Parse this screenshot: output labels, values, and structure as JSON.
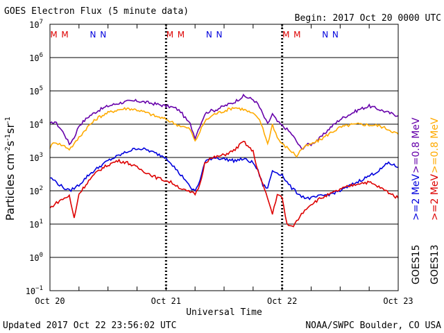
{
  "title": "GOES Electron Flux (5 minute data)",
  "begin": "Begin: 2017 Oct 20 0000 UTC",
  "updated": "Updated 2017 Oct 22 23:56:02 UTC",
  "credit": "NOAA/SWPC Boulder, CO USA",
  "colors": {
    "goes15_lo": "#6600aa",
    "goes13_lo": "#ffaa00",
    "goes15_hi": "#0000dd",
    "goes13_hi": "#dd0000",
    "M": "#dd0000",
    "N": "#0000dd"
  },
  "chart_data": {
    "type": "line",
    "title": "GOES Electron Flux (5 minute data)",
    "xlabel": "Universal Time",
    "ylabel_base": "Particles cm",
    "ylabel_sup1": "-2",
    "ylabel_s": "s",
    "ylabel_sup2": "-1",
    "ylabel_sr": "sr",
    "ylabel_sup3": "-1",
    "y_scale": "log",
    "ylim": [
      0.1,
      10000000
    ],
    "xlim_hours": [
      0,
      72
    ],
    "x_ticks": [
      {
        "h": 0,
        "label": "Oct 20"
      },
      {
        "h": 24,
        "label": "Oct 21"
      },
      {
        "h": 48,
        "label": "Oct 22"
      },
      {
        "h": 72,
        "label": "Oct 23"
      }
    ],
    "y_ticks": [
      {
        "exp": -1,
        "base": "10",
        "sup": "−1"
      },
      {
        "exp": 0,
        "base": "10",
        "sup": "0"
      },
      {
        "exp": 1,
        "base": "10",
        "sup": "1"
      },
      {
        "exp": 2,
        "base": "10",
        "sup": "2"
      },
      {
        "exp": 3,
        "base": "10",
        "sup": "3"
      },
      {
        "exp": 4,
        "base": "10",
        "sup": "4"
      },
      {
        "exp": 5,
        "base": "10",
        "sup": "5"
      },
      {
        "exp": 6,
        "base": "10",
        "sup": "6"
      },
      {
        "exp": 7,
        "base": "10",
        "sup": "7"
      }
    ],
    "threshold": 1000,
    "midnight_markers": [
      {
        "h": 0.8,
        "type": "M"
      },
      {
        "h": 3.1,
        "type": "M"
      },
      {
        "h": 8.9,
        "type": "N"
      },
      {
        "h": 11.0,
        "type": "N"
      },
      {
        "h": 24.8,
        "type": "M"
      },
      {
        "h": 27.1,
        "type": "M"
      },
      {
        "h": 32.9,
        "type": "N"
      },
      {
        "h": 35.0,
        "type": "N"
      },
      {
        "h": 48.8,
        "type": "M"
      },
      {
        "h": 51.1,
        "type": "M"
      },
      {
        "h": 56.9,
        "type": "N"
      },
      {
        "h": 59.0,
        "type": "N"
      }
    ],
    "legend": {
      "goes15_lo": ">=0.8 MeV",
      "goes13_lo": ">=0.8 MeV",
      "goes15_hi": ">=2 MeV",
      "goes13_hi": ">=2 MeV",
      "goes15": "GOES15",
      "goes13": "GOES13"
    },
    "series": [
      {
        "key": "goes15_lo",
        "color": "#6600aa",
        "x": [
          0,
          1,
          2,
          3,
          4,
          5,
          6,
          8,
          10,
          12,
          14,
          16,
          18,
          20,
          22,
          24,
          25,
          26,
          27,
          28,
          29,
          30,
          31,
          32,
          33,
          34,
          36,
          38,
          40,
          42,
          43,
          44,
          45,
          46,
          47,
          48,
          49,
          50,
          51,
          52,
          53,
          54,
          56,
          58,
          60,
          62,
          64,
          66,
          68,
          70,
          72
        ],
        "y": [
          10000,
          12000,
          8000,
          5000,
          2500,
          4000,
          9000,
          17000,
          26000,
          35000,
          42000,
          48000,
          50000,
          45000,
          40000,
          35000,
          33000,
          30000,
          24000,
          15000,
          10000,
          4000,
          9000,
          20000,
          25000,
          26000,
          35000,
          45000,
          70000,
          55000,
          40000,
          20000,
          10000,
          20000,
          12000,
          9000,
          7000,
          5000,
          3000,
          1800,
          2400,
          2500,
          4000,
          8000,
          14000,
          20000,
          28000,
          35000,
          28000,
          22000,
          18000
        ]
      },
      {
        "key": "goes13_lo",
        "color": "#ffaa00",
        "x": [
          0,
          1,
          2,
          3,
          4,
          5,
          6,
          8,
          10,
          12,
          14,
          16,
          18,
          20,
          22,
          24,
          25,
          26,
          27,
          28,
          29,
          30,
          31,
          32,
          33,
          34,
          36,
          38,
          40,
          42,
          43,
          44,
          45,
          46,
          47,
          48,
          49,
          50,
          51,
          52,
          53,
          54,
          56,
          58,
          60,
          62,
          64,
          66,
          68,
          70,
          72
        ],
        "y": [
          2000,
          3000,
          2500,
          2200,
          1800,
          2500,
          4000,
          9000,
          16000,
          22000,
          27000,
          30000,
          27000,
          22000,
          17000,
          14000,
          12000,
          10000,
          9000,
          8000,
          7000,
          3000,
          6000,
          12000,
          16000,
          20000,
          25000,
          32000,
          28000,
          20000,
          16000,
          8000,
          2500,
          10000,
          4000,
          2500,
          2000,
          1500,
          1100,
          1800,
          2200,
          2500,
          3500,
          5500,
          8000,
          9500,
          10000,
          9500,
          9000,
          7000,
          5000
        ]
      },
      {
        "key": "goes15_hi",
        "color": "#0000dd",
        "x": [
          0,
          1,
          2,
          3,
          4,
          5,
          6,
          8,
          10,
          12,
          14,
          16,
          18,
          20,
          22,
          24,
          25,
          26,
          27,
          28,
          29,
          30,
          31,
          32,
          33,
          34,
          36,
          38,
          40,
          42,
          43,
          44,
          45,
          46,
          47,
          48,
          49,
          50,
          51,
          52,
          53,
          54,
          56,
          58,
          60,
          62,
          64,
          66,
          68,
          70,
          72
        ],
        "y": [
          250,
          200,
          150,
          120,
          100,
          120,
          150,
          300,
          500,
          800,
          1100,
          1500,
          1900,
          1700,
          1300,
          1000,
          700,
          450,
          300,
          220,
          120,
          100,
          200,
          700,
          900,
          1000,
          900,
          800,
          900,
          700,
          400,
          150,
          120,
          400,
          350,
          300,
          180,
          120,
          90,
          70,
          60,
          60,
          70,
          80,
          100,
          140,
          200,
          280,
          400,
          700,
          500
        ]
      },
      {
        "key": "goes13_hi",
        "color": "#dd0000",
        "x": [
          0,
          1,
          2,
          3,
          4,
          5,
          6,
          8,
          10,
          12,
          14,
          16,
          18,
          20,
          22,
          24,
          25,
          26,
          27,
          28,
          29,
          30,
          31,
          32,
          33,
          34,
          36,
          38,
          40,
          42,
          43,
          44,
          45,
          46,
          47,
          48,
          49,
          50,
          51,
          52,
          53,
          54,
          56,
          58,
          60,
          62,
          64,
          66,
          68,
          70,
          72
        ],
        "y": [
          30,
          40,
          50,
          60,
          70,
          15,
          80,
          200,
          400,
          600,
          800,
          700,
          500,
          350,
          250,
          200,
          180,
          150,
          120,
          100,
          90,
          80,
          150,
          700,
          900,
          1000,
          1200,
          1600,
          3000,
          1500,
          400,
          150,
          60,
          20,
          80,
          60,
          10,
          8,
          12,
          20,
          30,
          40,
          60,
          80,
          110,
          140,
          170,
          180,
          130,
          90,
          60
        ]
      }
    ]
  }
}
